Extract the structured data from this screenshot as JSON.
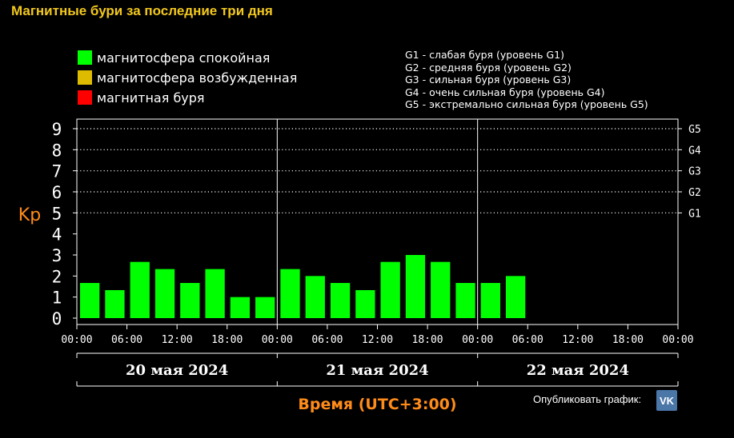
{
  "title": "Магнитные бури за последние три дня",
  "legend": [
    {
      "label": "магнитосфера спокойная",
      "color": "#00ff00"
    },
    {
      "label": "магнитосфера возбужденная",
      "color": "#ddbb00"
    },
    {
      "label": "магнитная буря",
      "color": "#ff0000"
    }
  ],
  "g_legend": [
    "G1 - слабая буря (уровень G1)",
    "G2 - средняя буря (уровень G2)",
    "G3 - сильная буря (уровень G3)",
    "G4 - очень сильная буря (уровень G4)",
    "G5 - экстремально сильная буря (уровень G5)"
  ],
  "publish": {
    "label": "Опубликовать график:",
    "icon": "vk-icon",
    "icon_text": "VK"
  },
  "chart_data": {
    "type": "bar",
    "ylabel": "Kp",
    "xlabel": "Время (UTC+3:00)",
    "ylim": [
      0,
      9
    ],
    "y_ticks": [
      "0",
      "1",
      "2",
      "3",
      "4",
      "5",
      "6",
      "7",
      "8",
      "9"
    ],
    "g_levels": [
      {
        "label": "G1",
        "kp": 5
      },
      {
        "label": "G2",
        "kp": 6
      },
      {
        "label": "G3",
        "kp": 7
      },
      {
        "label": "G4",
        "kp": 8
      },
      {
        "label": "G5",
        "kp": 9
      }
    ],
    "days": [
      "20 мая 2024",
      "21 мая 2024",
      "22 мая 2024"
    ],
    "x_ticks": [
      "00:00",
      "06:00",
      "12:00",
      "18:00",
      "00:00",
      "06:00",
      "12:00",
      "18:00",
      "00:00",
      "06:00",
      "12:00",
      "18:00",
      "00:00"
    ],
    "slots_total": 24,
    "values": [
      1.67,
      1.33,
      2.67,
      2.33,
      1.67,
      2.33,
      1.0,
      1.0,
      2.33,
      2.0,
      1.67,
      1.33,
      2.67,
      3.0,
      2.67,
      1.67,
      1.67,
      2.0
    ],
    "colors": {
      "quiet": "#00ff00",
      "axis": "#ffffff",
      "accent": "#ff8c1a"
    }
  }
}
